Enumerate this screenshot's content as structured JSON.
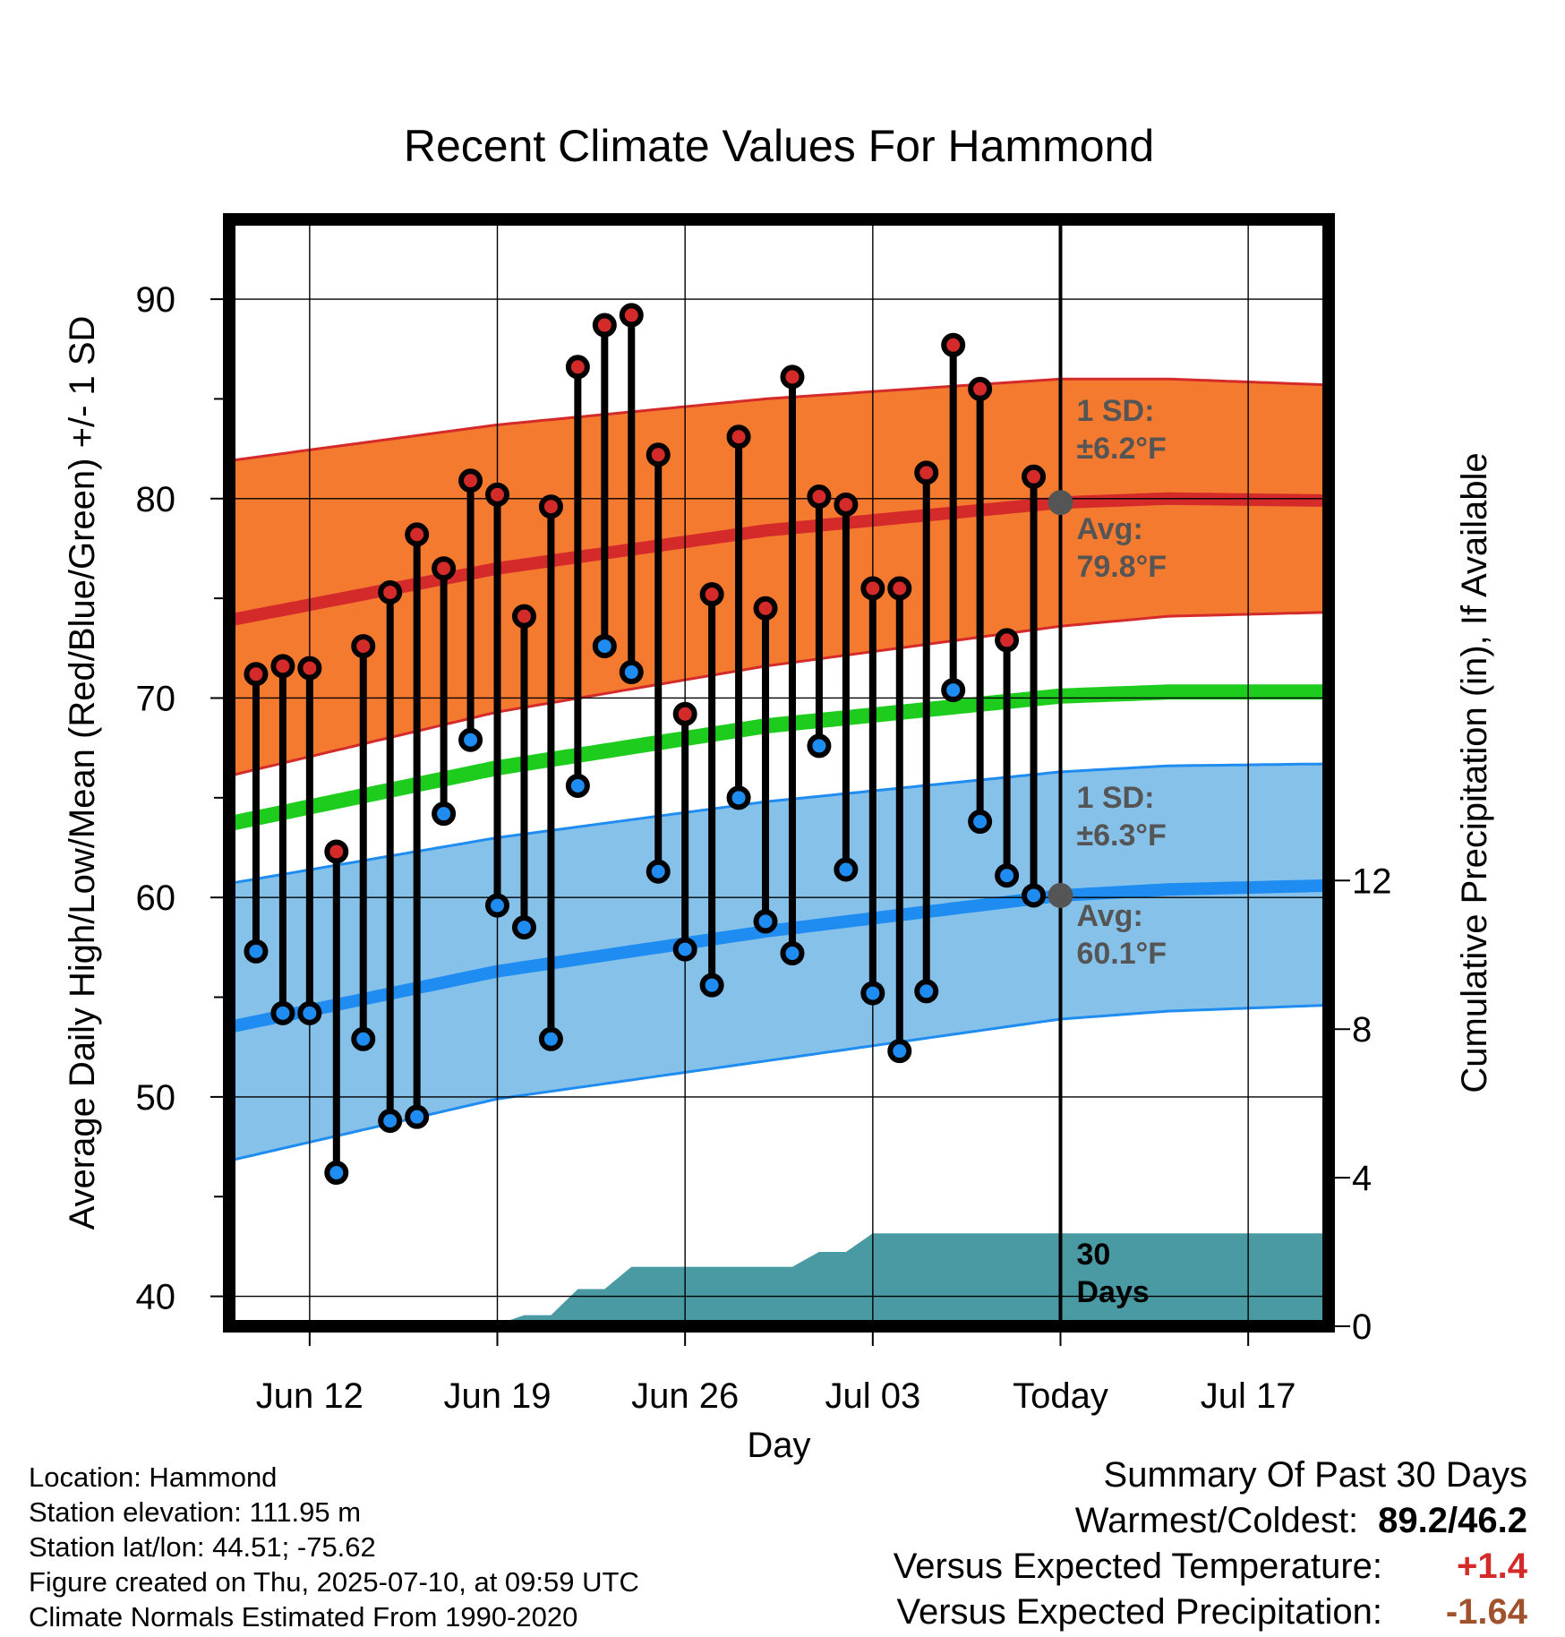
{
  "chart_data": {
    "type": "line",
    "title": "Recent Climate Values For Hammond",
    "xlabel": "Day",
    "ylabel": "Average Daily High/Low/Mean (Red/Blue/Green) +/- 1 SD",
    "ylabel_right": "Cumulative Precipitation (in), If Available",
    "xticks": [
      {
        "day": 3,
        "label": "Jun 12"
      },
      {
        "day": 10,
        "label": "Jun 19"
      },
      {
        "day": 17,
        "label": "Jun 26"
      },
      {
        "day": 24,
        "label": "Jul 03"
      },
      {
        "day": 31,
        "label": "Today"
      },
      {
        "day": 38,
        "label": "Jul 17"
      }
    ],
    "xlim": [
      0,
      41
    ],
    "ylim": [
      38.5,
      94
    ],
    "y_major_ticks": [
      40,
      50,
      60,
      70,
      80,
      90
    ],
    "y2lim": [
      0,
      29.8
    ],
    "y2_ticks": [
      0,
      4,
      8,
      12
    ],
    "today_day": 31,
    "normals": {
      "high_mean": [
        [
          0,
          73.9
        ],
        [
          10,
          76.5
        ],
        [
          20,
          78.4
        ],
        [
          31,
          79.8
        ],
        [
          35,
          80.0
        ],
        [
          41,
          79.9
        ]
      ],
      "high_upper": [
        [
          0,
          81.9
        ],
        [
          10,
          83.7
        ],
        [
          20,
          85.0
        ],
        [
          31,
          86.0
        ],
        [
          35,
          86.0
        ],
        [
          41,
          85.7
        ]
      ],
      "high_lower": [
        [
          0,
          66.1
        ],
        [
          10,
          69.3
        ],
        [
          20,
          71.6
        ],
        [
          31,
          73.6
        ],
        [
          35,
          74.1
        ],
        [
          41,
          74.3
        ]
      ],
      "mean": [
        [
          0,
          63.7
        ],
        [
          10,
          66.5
        ],
        [
          20,
          68.6
        ],
        [
          31,
          70.1
        ],
        [
          35,
          70.3
        ],
        [
          41,
          70.3
        ]
      ],
      "low_mean": [
        [
          0,
          53.5
        ],
        [
          10,
          56.3
        ],
        [
          20,
          58.3
        ],
        [
          31,
          60.1
        ],
        [
          35,
          60.4
        ],
        [
          41,
          60.6
        ]
      ],
      "low_upper": [
        [
          0,
          60.7
        ],
        [
          10,
          63.0
        ],
        [
          20,
          64.8
        ],
        [
          31,
          66.3
        ],
        [
          35,
          66.6
        ],
        [
          41,
          66.7
        ]
      ],
      "low_lower": [
        [
          0,
          46.8
        ],
        [
          10,
          49.9
        ],
        [
          20,
          51.8
        ],
        [
          31,
          53.9
        ],
        [
          35,
          54.3
        ],
        [
          41,
          54.6
        ]
      ]
    },
    "daily": {
      "days": [
        1,
        2,
        3,
        4,
        5,
        6,
        7,
        8,
        9,
        10,
        11,
        12,
        13,
        14,
        15,
        16,
        17,
        18,
        19,
        20,
        21,
        22,
        23,
        24,
        25,
        26,
        27,
        28,
        29,
        30
      ],
      "highs": [
        71.2,
        71.6,
        71.5,
        62.3,
        72.6,
        75.3,
        78.2,
        76.5,
        80.9,
        80.2,
        74.1,
        79.6,
        86.6,
        88.7,
        89.2,
        82.2,
        69.2,
        75.2,
        83.1,
        74.5,
        86.1,
        80.1,
        79.7,
        75.5,
        75.5,
        81.3,
        87.7,
        85.5,
        72.9,
        81.1
      ],
      "lows": [
        57.3,
        54.2,
        54.2,
        46.2,
        52.9,
        48.8,
        49.0,
        64.2,
        67.9,
        59.6,
        58.5,
        52.9,
        65.6,
        72.6,
        71.3,
        61.3,
        57.4,
        55.6,
        65.0,
        58.8,
        57.2,
        67.6,
        61.4,
        55.2,
        52.3,
        55.3,
        70.4,
        63.8,
        61.1,
        60.1
      ]
    },
    "precip": {
      "days": [
        0,
        9.8,
        11,
        12,
        13,
        14,
        15,
        16,
        17,
        18,
        19,
        20,
        21,
        22,
        23,
        24,
        25,
        26,
        27,
        28,
        29,
        30,
        31,
        32,
        33,
        34,
        35,
        36,
        37,
        38,
        39,
        40,
        41
      ],
      "values": [
        0,
        0,
        0.3,
        0.3,
        1.0,
        1.0,
        1.6,
        1.6,
        1.6,
        1.6,
        1.6,
        1.6,
        1.6,
        2.0,
        2.0,
        2.5,
        2.5,
        2.5,
        2.5,
        2.5,
        2.5,
        2.5,
        2.5,
        2.5,
        2.5,
        2.5,
        2.5,
        2.5,
        2.5,
        2.5,
        2.5,
        2.5,
        2.5
      ]
    },
    "annotations": {
      "high_sd": [
        "1 SD:",
        "±6.2°F"
      ],
      "high_avg": [
        "Avg:",
        "79.8°F"
      ],
      "low_sd": [
        "1 SD:",
        "±6.3°F"
      ],
      "low_avg": [
        "Avg:",
        "60.1°F"
      ],
      "precip_days": [
        "30",
        "Days"
      ]
    },
    "colors": {
      "high_band": "#F47A30",
      "high_line": "#D42A2A",
      "mean_line": "#1ECC1E",
      "low_band": "#85C1E9",
      "low_line": "#1E8CF0",
      "precip": "#4A9AA3",
      "high_dot": "#D42A2A",
      "low_dot": "#1E8CF0",
      "annotation": "#555555"
    }
  },
  "footer": {
    "location": "Location: Hammond",
    "elevation": "Station elevation: 111.95 m",
    "latlon": "Station lat/lon: 44.51; -75.62",
    "created": "Figure created on Thu, 2025-07-10, at 09:59 UTC",
    "normals": "Climate Normals Estimated From 1990-2020"
  },
  "summary": {
    "title": "Summary Of Past 30 Days",
    "warm_cold_label": "Warmest/Coldest:",
    "warm_cold_value": "89.2/46.2",
    "temp_label": "Versus Expected Temperature:",
    "temp_value": "+1.4",
    "temp_color": "#D42A2A",
    "precip_label": "Versus Expected Precipitation:",
    "precip_value": "-1.64",
    "precip_color": "#A0522D"
  }
}
